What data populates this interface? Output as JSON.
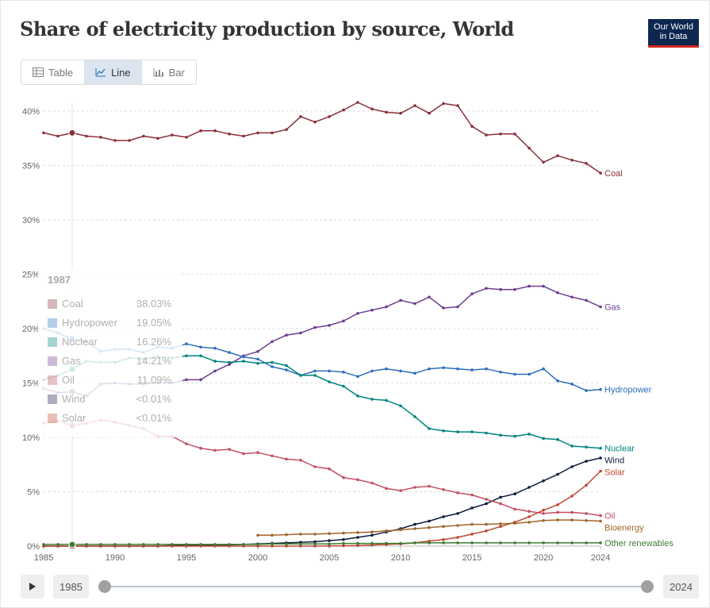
{
  "header": {
    "title": "Share of electricity production by source, World",
    "logo_line1": "Our World",
    "logo_line2": "in Data"
  },
  "tabs": [
    {
      "label": "Table",
      "active": false
    },
    {
      "label": "Line",
      "active": true
    },
    {
      "label": "Bar",
      "active": false
    }
  ],
  "timeline": {
    "start_label": "1985",
    "end_label": "2024"
  },
  "tooltip": {
    "year": "1987",
    "rows": [
      {
        "name": "Coal",
        "value": "38.03%"
      },
      {
        "name": "Hydropower",
        "value": "19.05%"
      },
      {
        "name": "Nuclear",
        "value": "16.26%"
      },
      {
        "name": "Gas",
        "value": "14.21%"
      },
      {
        "name": "Oil",
        "value": "11.09%"
      },
      {
        "name": "Wind",
        "value": "<0.01%"
      },
      {
        "name": "Solar",
        "value": "<0.01%"
      }
    ]
  },
  "chart_data": {
    "type": "line",
    "title": "Share of electricity production by source, World",
    "x_ticks": [
      "1985",
      "1990",
      "1995",
      "2000",
      "2005",
      "2010",
      "2015",
      "2020",
      "2024"
    ],
    "y_ticks": [
      "0%",
      "5%",
      "10%",
      "15%",
      "20%",
      "25%",
      "30%",
      "35%",
      "40%"
    ],
    "xlim": [
      1985,
      2024
    ],
    "ylim": [
      0,
      40
    ],
    "grid": "horizontal dashed",
    "hover_year": 1987,
    "series": [
      {
        "name": "Coal",
        "color": "#883039",
        "start": 1985,
        "values": [
          38.0,
          37.7,
          38.0,
          37.7,
          37.6,
          37.3,
          37.3,
          37.7,
          37.5,
          37.8,
          37.6,
          38.2,
          38.2,
          37.9,
          37.7,
          38.0,
          38.0,
          38.3,
          39.5,
          39.0,
          39.5,
          40.1,
          40.8,
          40.2,
          39.9,
          39.8,
          40.5,
          39.8,
          40.7,
          40.5,
          38.6,
          37.8,
          37.9,
          37.9,
          36.6,
          35.3,
          35.9,
          35.5,
          35.2,
          34.3
        ]
      },
      {
        "name": "Gas",
        "color": "#6d3e91",
        "start": 1985,
        "values": [
          14.5,
          14.1,
          14.2,
          13.8,
          14.9,
          15.0,
          14.9,
          14.9,
          15.0,
          15.0,
          15.3,
          15.3,
          16.1,
          16.7,
          17.5,
          17.9,
          18.8,
          19.4,
          19.6,
          20.1,
          20.3,
          20.7,
          21.4,
          21.7,
          22.0,
          22.6,
          22.3,
          22.9,
          21.9,
          22.0,
          23.2,
          23.7,
          23.6,
          23.6,
          23.9,
          23.9,
          23.3,
          22.9,
          22.6,
          22.0
        ]
      },
      {
        "name": "Hydropower",
        "color": "#2c6fbd",
        "start": 1985,
        "values": [
          20.0,
          19.6,
          19.05,
          18.8,
          17.9,
          18.1,
          18.1,
          17.8,
          18.3,
          18.2,
          18.6,
          18.3,
          18.2,
          17.8,
          17.4,
          17.2,
          16.5,
          16.2,
          15.7,
          16.1,
          16.1,
          16.0,
          15.6,
          16.1,
          16.3,
          16.1,
          15.9,
          16.3,
          16.4,
          16.3,
          16.2,
          16.3,
          16.0,
          15.8,
          15.8,
          16.3,
          15.2,
          14.9,
          14.3,
          14.4
        ]
      },
      {
        "name": "Nuclear",
        "color": "#00847e",
        "start": 1985,
        "values": [
          15.3,
          15.7,
          16.26,
          17.0,
          16.9,
          16.9,
          17.3,
          17.2,
          17.4,
          17.3,
          17.5,
          17.5,
          17.0,
          16.9,
          17.0,
          16.8,
          16.9,
          16.6,
          15.7,
          15.7,
          15.1,
          14.7,
          13.8,
          13.5,
          13.4,
          12.9,
          11.9,
          10.8,
          10.6,
          10.5,
          10.5,
          10.4,
          10.2,
          10.1,
          10.3,
          9.9,
          9.8,
          9.2,
          9.1,
          9.0
        ]
      },
      {
        "name": "Wind",
        "color": "#0f1b3e",
        "start": 1985,
        "values": [
          0,
          0,
          0,
          0,
          0,
          0,
          0,
          0,
          0,
          0.05,
          0.05,
          0.05,
          0.1,
          0.1,
          0.15,
          0.2,
          0.25,
          0.3,
          0.35,
          0.4,
          0.5,
          0.6,
          0.8,
          1.0,
          1.3,
          1.6,
          2.0,
          2.3,
          2.7,
          3.0,
          3.5,
          3.9,
          4.5,
          4.8,
          5.4,
          6.0,
          6.6,
          7.3,
          7.8,
          8.1
        ]
      },
      {
        "name": "Solar",
        "color": "#c1472e",
        "start": 1985,
        "values": [
          0,
          0,
          0,
          0,
          0,
          0,
          0,
          0,
          0,
          0,
          0,
          0,
          0,
          0,
          0,
          0,
          0,
          0,
          0,
          0,
          0.02,
          0.03,
          0.05,
          0.1,
          0.15,
          0.2,
          0.3,
          0.45,
          0.6,
          0.8,
          1.1,
          1.4,
          1.8,
          2.2,
          2.7,
          3.3,
          3.8,
          4.6,
          5.6,
          6.9
        ]
      },
      {
        "name": "Oil",
        "color": "#c15065",
        "start": 1985,
        "values": [
          11.3,
          11.5,
          11.09,
          11.3,
          11.6,
          11.4,
          11.1,
          10.8,
          10.1,
          10.1,
          9.4,
          9.0,
          8.8,
          8.9,
          8.5,
          8.6,
          8.3,
          8.0,
          7.9,
          7.3,
          7.1,
          6.3,
          6.1,
          5.8,
          5.3,
          5.1,
          5.4,
          5.5,
          5.2,
          4.9,
          4.7,
          4.3,
          3.9,
          3.4,
          3.2,
          3.0,
          3.1,
          3.1,
          3.0,
          2.8
        ]
      },
      {
        "name": "Bioenergy",
        "color": "#a2652b",
        "start": 2000,
        "values": [
          1.0,
          1.0,
          1.05,
          1.1,
          1.1,
          1.15,
          1.2,
          1.25,
          1.3,
          1.4,
          1.5,
          1.6,
          1.7,
          1.8,
          1.9,
          2.0,
          2.0,
          2.05,
          2.1,
          2.2,
          2.35,
          2.4,
          2.4,
          2.35,
          2.3
        ]
      },
      {
        "name": "Other renewables",
        "color": "#3f7b35",
        "start": 1985,
        "values": [
          0.15,
          0.15,
          0.15,
          0.15,
          0.15,
          0.15,
          0.15,
          0.15,
          0.15,
          0.15,
          0.15,
          0.15,
          0.15,
          0.15,
          0.15,
          0.15,
          0.2,
          0.2,
          0.2,
          0.2,
          0.2,
          0.25,
          0.25,
          0.25,
          0.25,
          0.25,
          0.3,
          0.3,
          0.3,
          0.3,
          0.3,
          0.3,
          0.3,
          0.3,
          0.3,
          0.3,
          0.3,
          0.3,
          0.3,
          0.3
        ]
      }
    ],
    "end_labels": {
      "Coal": "Coal",
      "Gas": "Gas",
      "Hydropower": "Hydropower",
      "Nuclear": "Nuclear",
      "Wind": "Wind",
      "Solar": "Solar",
      "Oil": "Oil",
      "Bioenergy": "Bioenergy",
      "Other renewables": "Other renewables"
    }
  }
}
